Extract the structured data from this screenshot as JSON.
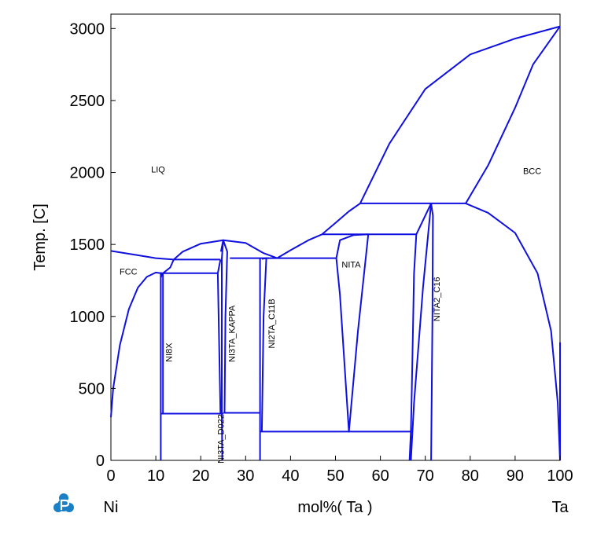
{
  "chart_data": {
    "type": "line",
    "xlabel": "mol%(  Ta  )",
    "ylabel": "Temp.  [C]",
    "xlim": [
      0,
      100
    ],
    "ylim": [
      0,
      3100
    ],
    "x_ticks": [
      0,
      10,
      20,
      30,
      40,
      50,
      60,
      70,
      80,
      90,
      100
    ],
    "y_ticks": [
      0,
      500,
      1000,
      1500,
      2000,
      2500,
      3000
    ],
    "grid": false,
    "line_color": "#1010e0",
    "endpoints": {
      "left": "Ni",
      "right": "Ta"
    },
    "phase_labels": [
      {
        "text": "LIQ",
        "x": 10.5,
        "y": 2000,
        "rotate": false
      },
      {
        "text": "BCC",
        "x": 93.8,
        "y": 1990,
        "rotate": false
      },
      {
        "text": "FCC",
        "x": 3.9,
        "y": 1290,
        "rotate": false
      },
      {
        "text": "NITA",
        "x": 53.5,
        "y": 1340,
        "rotate": false
      },
      {
        "text": "NI8X",
        "x": 13.6,
        "y": 750,
        "rotate": true
      },
      {
        "text": "NI3TA_KAPPA",
        "x": 27.6,
        "y": 880,
        "rotate": true
      },
      {
        "text": "NI2TA_C11B",
        "x": 36.4,
        "y": 950,
        "rotate": true
      },
      {
        "text": "NITA2_C16",
        "x": 73.2,
        "y": 1120,
        "rotate": true
      },
      {
        "text": "NI3TA_D022",
        "x": 25.1,
        "y": 150,
        "rotate": true
      }
    ],
    "curves": [
      {
        "points": [
          [
            0,
            1455
          ],
          [
            6,
            1425
          ],
          [
            10,
            1405
          ],
          [
            14,
            1395
          ]
        ]
      },
      {
        "points": [
          [
            0,
            300
          ],
          [
            0.5,
            500
          ],
          [
            2,
            800
          ],
          [
            4,
            1050
          ],
          [
            6,
            1200
          ],
          [
            8,
            1275
          ],
          [
            10,
            1305
          ],
          [
            11.1,
            1300
          ]
        ]
      },
      {
        "points": [
          [
            11.1,
            1305
          ],
          [
            11.4,
            1290
          ],
          [
            11.1,
            1270
          ]
        ]
      },
      {
        "points": [
          [
            14,
            1395
          ],
          [
            13.2,
            1340
          ],
          [
            11.6,
            1300
          ]
        ]
      },
      {
        "points": [
          [
            14,
            1395
          ],
          [
            16,
            1450
          ],
          [
            20,
            1505
          ],
          [
            25,
            1530
          ],
          [
            30,
            1510
          ],
          [
            34,
            1440
          ],
          [
            37,
            1405
          ]
        ]
      },
      {
        "points": [
          [
            37,
            1405
          ],
          [
            40,
            1460
          ],
          [
            44,
            1530
          ],
          [
            47,
            1570
          ]
        ]
      },
      {
        "points": [
          [
            47,
            1570
          ],
          [
            50,
            1650
          ],
          [
            53,
            1730
          ],
          [
            55.5,
            1785
          ]
        ]
      },
      {
        "points": [
          [
            55.5,
            1785
          ],
          [
            62,
            2200
          ],
          [
            70,
            2580
          ],
          [
            80,
            2820
          ],
          [
            90,
            2930
          ],
          [
            100,
            3015
          ]
        ]
      },
      {
        "points": [
          [
            79,
            1785
          ],
          [
            84,
            2050
          ],
          [
            90,
            2450
          ],
          [
            94,
            2750
          ],
          [
            100,
            3015
          ]
        ]
      },
      {
        "points": [
          [
            79,
            1785
          ],
          [
            84,
            1720
          ],
          [
            90,
            1580
          ],
          [
            95,
            1300
          ],
          [
            98,
            900
          ],
          [
            99.5,
            400
          ],
          [
            100,
            0
          ]
        ]
      },
      {
        "points": [
          [
            55.5,
            1785
          ],
          [
            79,
            1785
          ]
        ]
      },
      {
        "points": [
          [
            47,
            1570
          ],
          [
            68,
            1570
          ]
        ]
      },
      {
        "points": [
          [
            14,
            1395
          ],
          [
            24.4,
            1395
          ]
        ]
      },
      {
        "points": [
          [
            11.1,
            1300
          ],
          [
            23.8,
            1300
          ]
        ]
      },
      {
        "points": [
          [
            26.5,
            1405
          ],
          [
            50.2,
            1405
          ]
        ]
      },
      {
        "points": [
          [
            11.1,
            325
          ],
          [
            25,
            325
          ]
        ]
      },
      {
        "points": [
          [
            25,
            330
          ],
          [
            33.2,
            330
          ]
        ]
      },
      {
        "points": [
          [
            33.2,
            200
          ],
          [
            66.8,
            200
          ]
        ]
      },
      {
        "points": [
          [
            11.1,
            0
          ],
          [
            11.1,
            1305
          ]
        ]
      },
      {
        "points": [
          [
            11.6,
            1300
          ],
          [
            11.6,
            325
          ]
        ]
      },
      {
        "points": [
          [
            24.4,
            1395
          ],
          [
            23.8,
            1300
          ],
          [
            24.4,
            325
          ]
        ]
      },
      {
        "points": [
          [
            24.5,
            1450
          ],
          [
            25,
            1530
          ],
          [
            24.7,
            1400
          ],
          [
            24.7,
            330
          ],
          [
            24.8,
            0
          ]
        ]
      },
      {
        "points": [
          [
            25,
            1530
          ],
          [
            25.9,
            1450
          ],
          [
            25.5,
            1000
          ],
          [
            25.3,
            330
          ]
        ]
      },
      {
        "points": [
          [
            33.2,
            1405
          ],
          [
            33.2,
            330
          ],
          [
            33.2,
            0
          ]
        ]
      },
      {
        "points": [
          [
            33.6,
            1400
          ],
          [
            34.6,
            1405
          ],
          [
            34,
            1000
          ],
          [
            33.6,
            200
          ]
        ]
      },
      {
        "points": [
          [
            35.2,
            1405
          ],
          [
            34.6,
            1405
          ]
        ]
      },
      {
        "points": [
          [
            50.2,
            1405
          ],
          [
            51,
            1530
          ],
          [
            54,
            1565
          ],
          [
            57.3,
            1570
          ]
        ]
      },
      {
        "points": [
          [
            50.2,
            1405
          ],
          [
            51,
            1150
          ],
          [
            53,
            200
          ],
          [
            55,
            900
          ],
          [
            57.3,
            1570
          ]
        ]
      },
      {
        "points": [
          [
            68,
            1570
          ],
          [
            67.5,
            1300
          ],
          [
            67,
            500
          ],
          [
            66.8,
            200
          ],
          [
            66.5,
            0
          ]
        ]
      },
      {
        "points": [
          [
            68,
            1570
          ],
          [
            71.3,
            1785
          ]
        ]
      },
      {
        "points": [
          [
            71.3,
            1785
          ],
          [
            69.5,
            1200
          ],
          [
            67.5,
            400
          ],
          [
            66.8,
            0
          ]
        ]
      },
      {
        "points": [
          [
            71.3,
            1785
          ],
          [
            71.7,
            1700
          ],
          [
            71.6,
            1000
          ],
          [
            71.3,
            0
          ]
        ]
      },
      {
        "points": [
          [
            100,
            0
          ],
          [
            100,
            820
          ]
        ]
      }
    ]
  }
}
